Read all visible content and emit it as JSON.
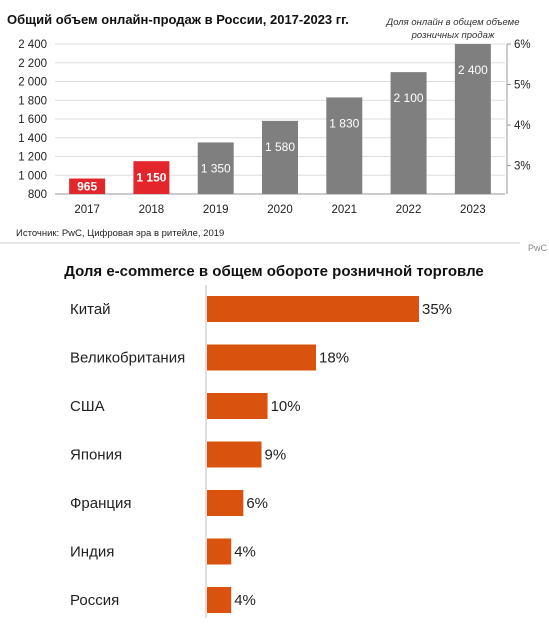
{
  "chart_data": [
    {
      "type": "bar",
      "title": "Общий объем онлайн-продаж в России, 2017-2023 гг.",
      "secondary_axis_note": "Доля онлайн в общем объеме розничных продаж",
      "categories": [
        "2017",
        "2018",
        "2019",
        "2020",
        "2021",
        "2022",
        "2023"
      ],
      "values": [
        965,
        1150,
        1350,
        1580,
        1830,
        2100,
        2400
      ],
      "value_labels": [
        "965",
        "1 150",
        "1 350",
        "1 580",
        "1 830",
        "2 100",
        "2 400"
      ],
      "bar_colors": [
        "#e3262b",
        "#e3262b",
        "#7f7f7f",
        "#7f7f7f",
        "#7f7f7f",
        "#7f7f7f",
        "#7f7f7f"
      ],
      "ylim": [
        800,
        2400
      ],
      "y_ticks": [
        "800",
        "1 000",
        "1 200",
        "1 400",
        "1 600",
        "1 800",
        "2 000",
        "2 200",
        "2 400"
      ],
      "y_tick_values": [
        800,
        1000,
        1200,
        1400,
        1600,
        1800,
        2000,
        2200,
        2400
      ],
      "y2_ticks": [
        "3%",
        "4%",
        "5%",
        "6%"
      ],
      "y2_tick_values": [
        3,
        4,
        5,
        6
      ],
      "y2lim": [
        2.3,
        6
      ],
      "grid": true,
      "source": "Источник: PwC, Цифровая эра в ритейле, 2019",
      "brand": "PwC"
    },
    {
      "type": "bar",
      "orientation": "horizontal",
      "title": "Доля e-commerce в общем обороте розничной торговле",
      "categories": [
        "Китай",
        "Великобритания",
        "США",
        "Япония",
        "Франция",
        "Индия",
        "Россия"
      ],
      "values": [
        35,
        18,
        10,
        9,
        6,
        4,
        4
      ],
      "value_labels": [
        "35%",
        "18%",
        "10%",
        "9%",
        "6%",
        "4%",
        "4%"
      ],
      "color": "#d9530e",
      "xlim": [
        0,
        35
      ]
    }
  ]
}
